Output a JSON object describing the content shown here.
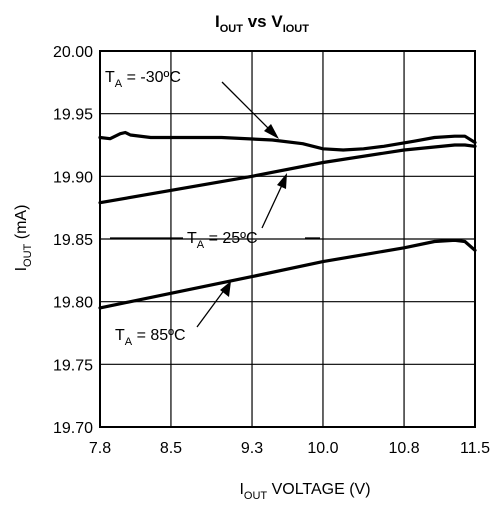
{
  "chart_data": {
    "type": "line",
    "title": {
      "main": "I",
      "main_sub": "OUT",
      "mid": " vs V",
      "mid_sub": "IOUT"
    },
    "xlabel": {
      "main": "I",
      "sub": "OUT",
      "rest": " VOLTAGE (V)"
    },
    "ylabel": {
      "main": "I",
      "sub": "OUT",
      "rest": " (mA)"
    },
    "xlim": [
      7.8,
      11.5
    ],
    "ylim": [
      19.7,
      20.0
    ],
    "x_ticks": [
      7.8,
      8.5,
      9.3,
      10.0,
      10.8,
      11.5
    ],
    "x_tick_labels": [
      "7.8",
      "8.5",
      "9.3",
      "10.0",
      "10.8",
      "11.5"
    ],
    "y_ticks": [
      19.7,
      19.75,
      19.8,
      19.85,
      19.9,
      19.95,
      20.0
    ],
    "y_tick_labels": [
      "19.70",
      "19.75",
      "19.80",
      "19.85",
      "19.90",
      "19.95",
      "20.00"
    ],
    "grid": true,
    "series": [
      {
        "label": {
          "pre": "T",
          "sub": "A",
          "post": " = -30ºC"
        },
        "points": [
          [
            7.8,
            19.931
          ],
          [
            7.9,
            19.93
          ],
          [
            8.0,
            19.934
          ],
          [
            8.05,
            19.935
          ],
          [
            8.1,
            19.933
          ],
          [
            8.3,
            19.931
          ],
          [
            8.6,
            19.931
          ],
          [
            9.0,
            19.931
          ],
          [
            9.5,
            19.929
          ],
          [
            9.8,
            19.926
          ],
          [
            10.0,
            19.922
          ],
          [
            10.2,
            19.921
          ],
          [
            10.4,
            19.922
          ],
          [
            10.6,
            19.924
          ],
          [
            10.9,
            19.928
          ],
          [
            11.1,
            19.931
          ],
          [
            11.3,
            19.932
          ],
          [
            11.4,
            19.932
          ],
          [
            11.5,
            19.927
          ]
        ]
      },
      {
        "label": {
          "pre": "T",
          "sub": "A",
          "post": " = 25ºC"
        },
        "points": [
          [
            7.8,
            19.879
          ],
          [
            9.3,
            19.9
          ],
          [
            10.0,
            19.911
          ],
          [
            10.8,
            19.921
          ],
          [
            11.3,
            19.925
          ],
          [
            11.4,
            19.925
          ],
          [
            11.5,
            19.924
          ]
        ]
      },
      {
        "label": {
          "pre": "T",
          "sub": "A",
          "post": " = 85ºC"
        },
        "points": [
          [
            7.8,
            19.795
          ],
          [
            9.3,
            19.82
          ],
          [
            10.0,
            19.832
          ],
          [
            10.8,
            19.843
          ],
          [
            11.1,
            19.848
          ],
          [
            11.3,
            19.849
          ],
          [
            11.4,
            19.848
          ],
          [
            11.5,
            19.841
          ]
        ]
      }
    ]
  }
}
